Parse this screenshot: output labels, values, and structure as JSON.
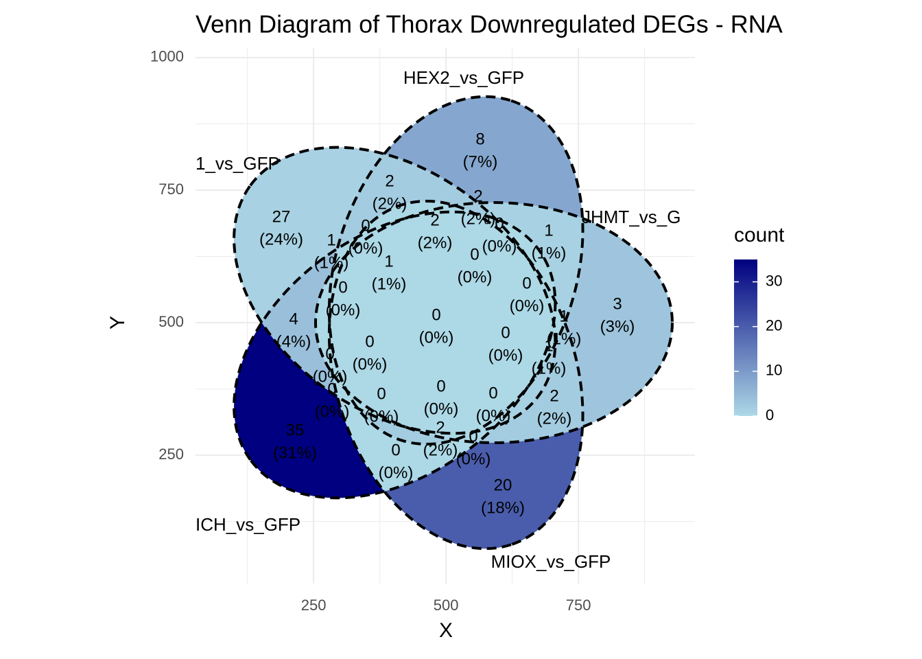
{
  "chart_data": {
    "type": "venn",
    "title": "Venn Diagram of Thorax Downregulated DEGs - RNA",
    "x_label": "X",
    "y_label": "Y",
    "sets": [
      "1_vs_GFP",
      "HEX2_vs_GFP",
      "JHMT_vs_G",
      "MIOX_vs_GFP",
      "ICH_vs_GFP"
    ],
    "values": [
      8,
      2,
      27,
      2,
      0,
      2,
      0,
      1,
      1,
      1,
      0,
      0,
      0,
      3,
      4,
      0,
      1,
      0,
      0,
      0,
      1,
      0,
      0,
      0,
      0,
      2,
      35,
      2,
      0,
      0,
      20
    ],
    "percent_labels": [
      "(7%)",
      "(2%)",
      "(24%)",
      "(2%)",
      "(0%)",
      "(2%)",
      "(0%)",
      "(1%)",
      "(1%)",
      "(1%)",
      "(0%)",
      "(0%)",
      "(0%)",
      "(3%)",
      "(4%)",
      "(0%)",
      "(1%)",
      "(0%)",
      "(0%)",
      "(0%)",
      "(1%)",
      "(0%)",
      "(0%)",
      "(0%)",
      "(0%)",
      "(2%)",
      "(31%)",
      "(2%)",
      "(0%)",
      "(0%)",
      "(18%)"
    ],
    "xlim": [
      27,
      970
    ],
    "ylim": [
      8,
      1018
    ],
    "xticks": [
      250,
      500,
      750
    ],
    "yticks": [
      250,
      500,
      750,
      1000
    ],
    "xminor": [
      125,
      375,
      625,
      875
    ],
    "yminor": [
      125,
      375,
      625,
      875
    ],
    "grid": true,
    "legend": {
      "title": "count",
      "lim": [
        0,
        35
      ],
      "ticks": [
        0,
        10,
        20,
        30
      ],
      "low": "#ADD8E6",
      "high": "#000080"
    }
  }
}
